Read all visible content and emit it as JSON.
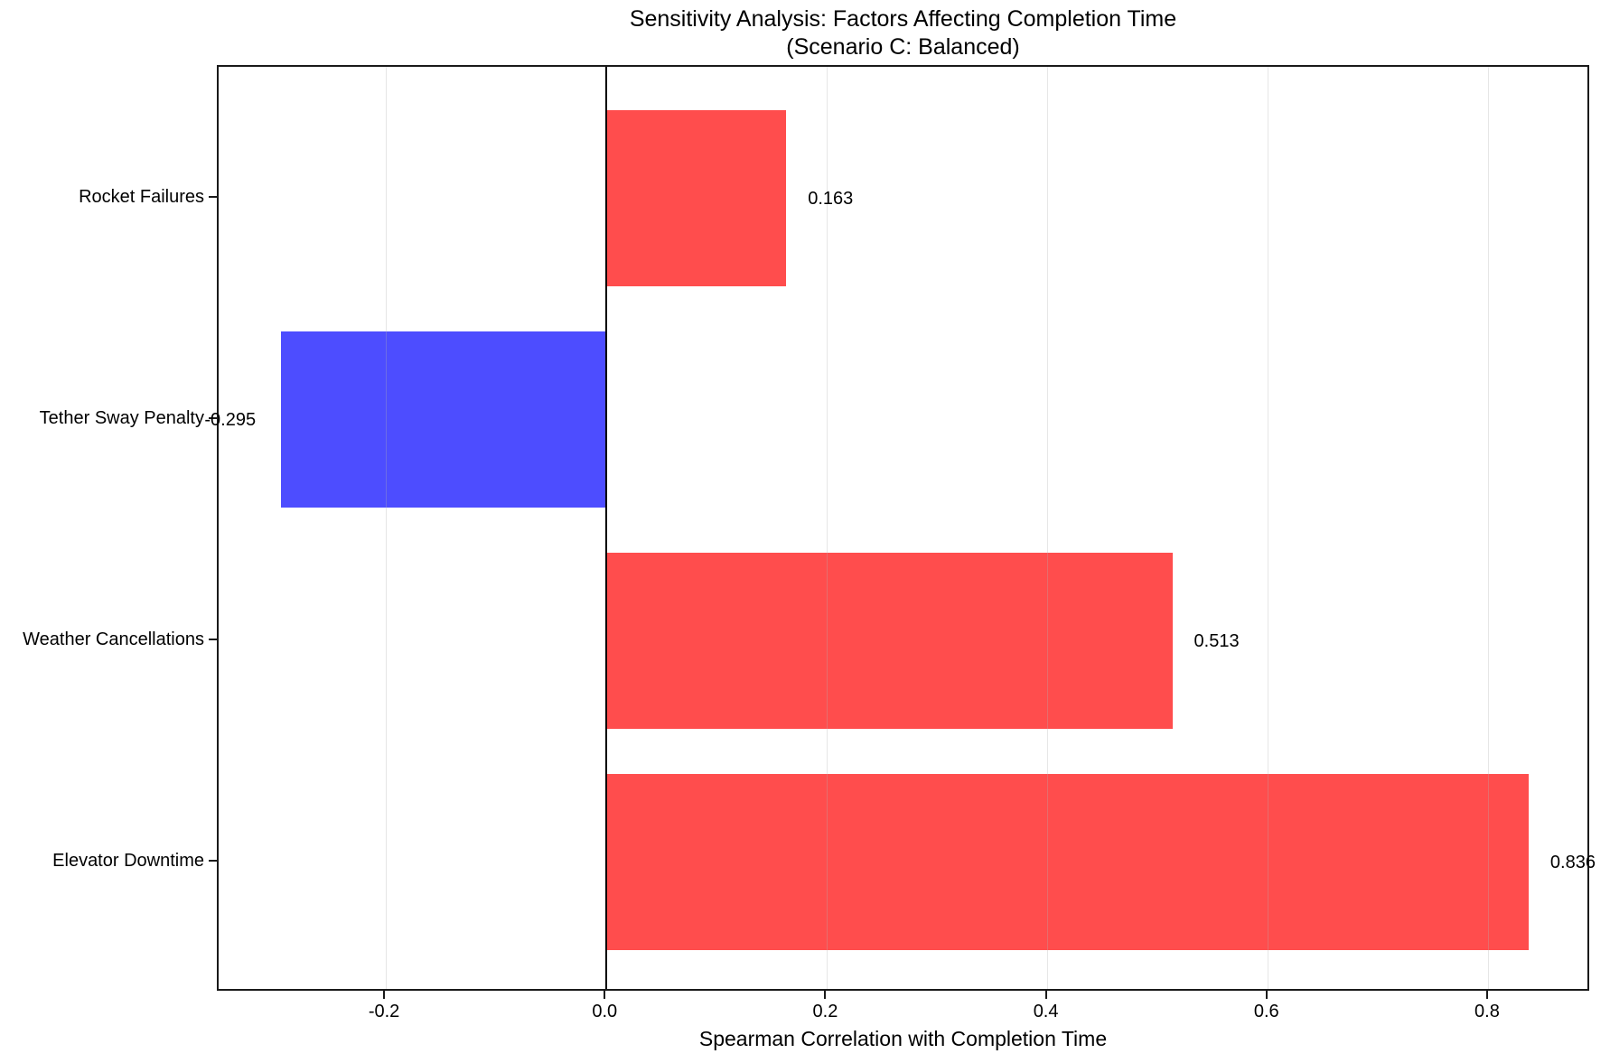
{
  "chart_data": {
    "type": "bar",
    "orientation": "horizontal",
    "title": "Sensitivity Analysis: Factors Affecting Completion Time",
    "subtitle": "(Scenario C: Balanced)",
    "xlabel": "Spearman Correlation with Completion Time",
    "categories": [
      "Rocket Failures",
      "Tether Sway Penalty",
      "Weather Cancellations",
      "Elevator Downtime"
    ],
    "values": [
      0.163,
      -0.295,
      0.513,
      0.836
    ],
    "value_labels": [
      "0.163",
      "-0.295",
      "0.513",
      "0.836"
    ],
    "xlim": [
      -0.3516,
      0.8926
    ],
    "xticks": [
      -0.2,
      0.0,
      0.2,
      0.4,
      0.6,
      0.8
    ],
    "xtick_labels": [
      "-0.2",
      "0.0",
      "0.2",
      "0.4",
      "0.6",
      "0.8"
    ],
    "grid": true,
    "legend": false,
    "zero_line": 0.0,
    "colors": {
      "positive_bar": "#ff4d4d",
      "negative_bar": "#4d4dff",
      "zero_line": "#000000",
      "grid": "#e7e7e7",
      "spine": "#1a1a1a",
      "text": "#000000"
    }
  }
}
